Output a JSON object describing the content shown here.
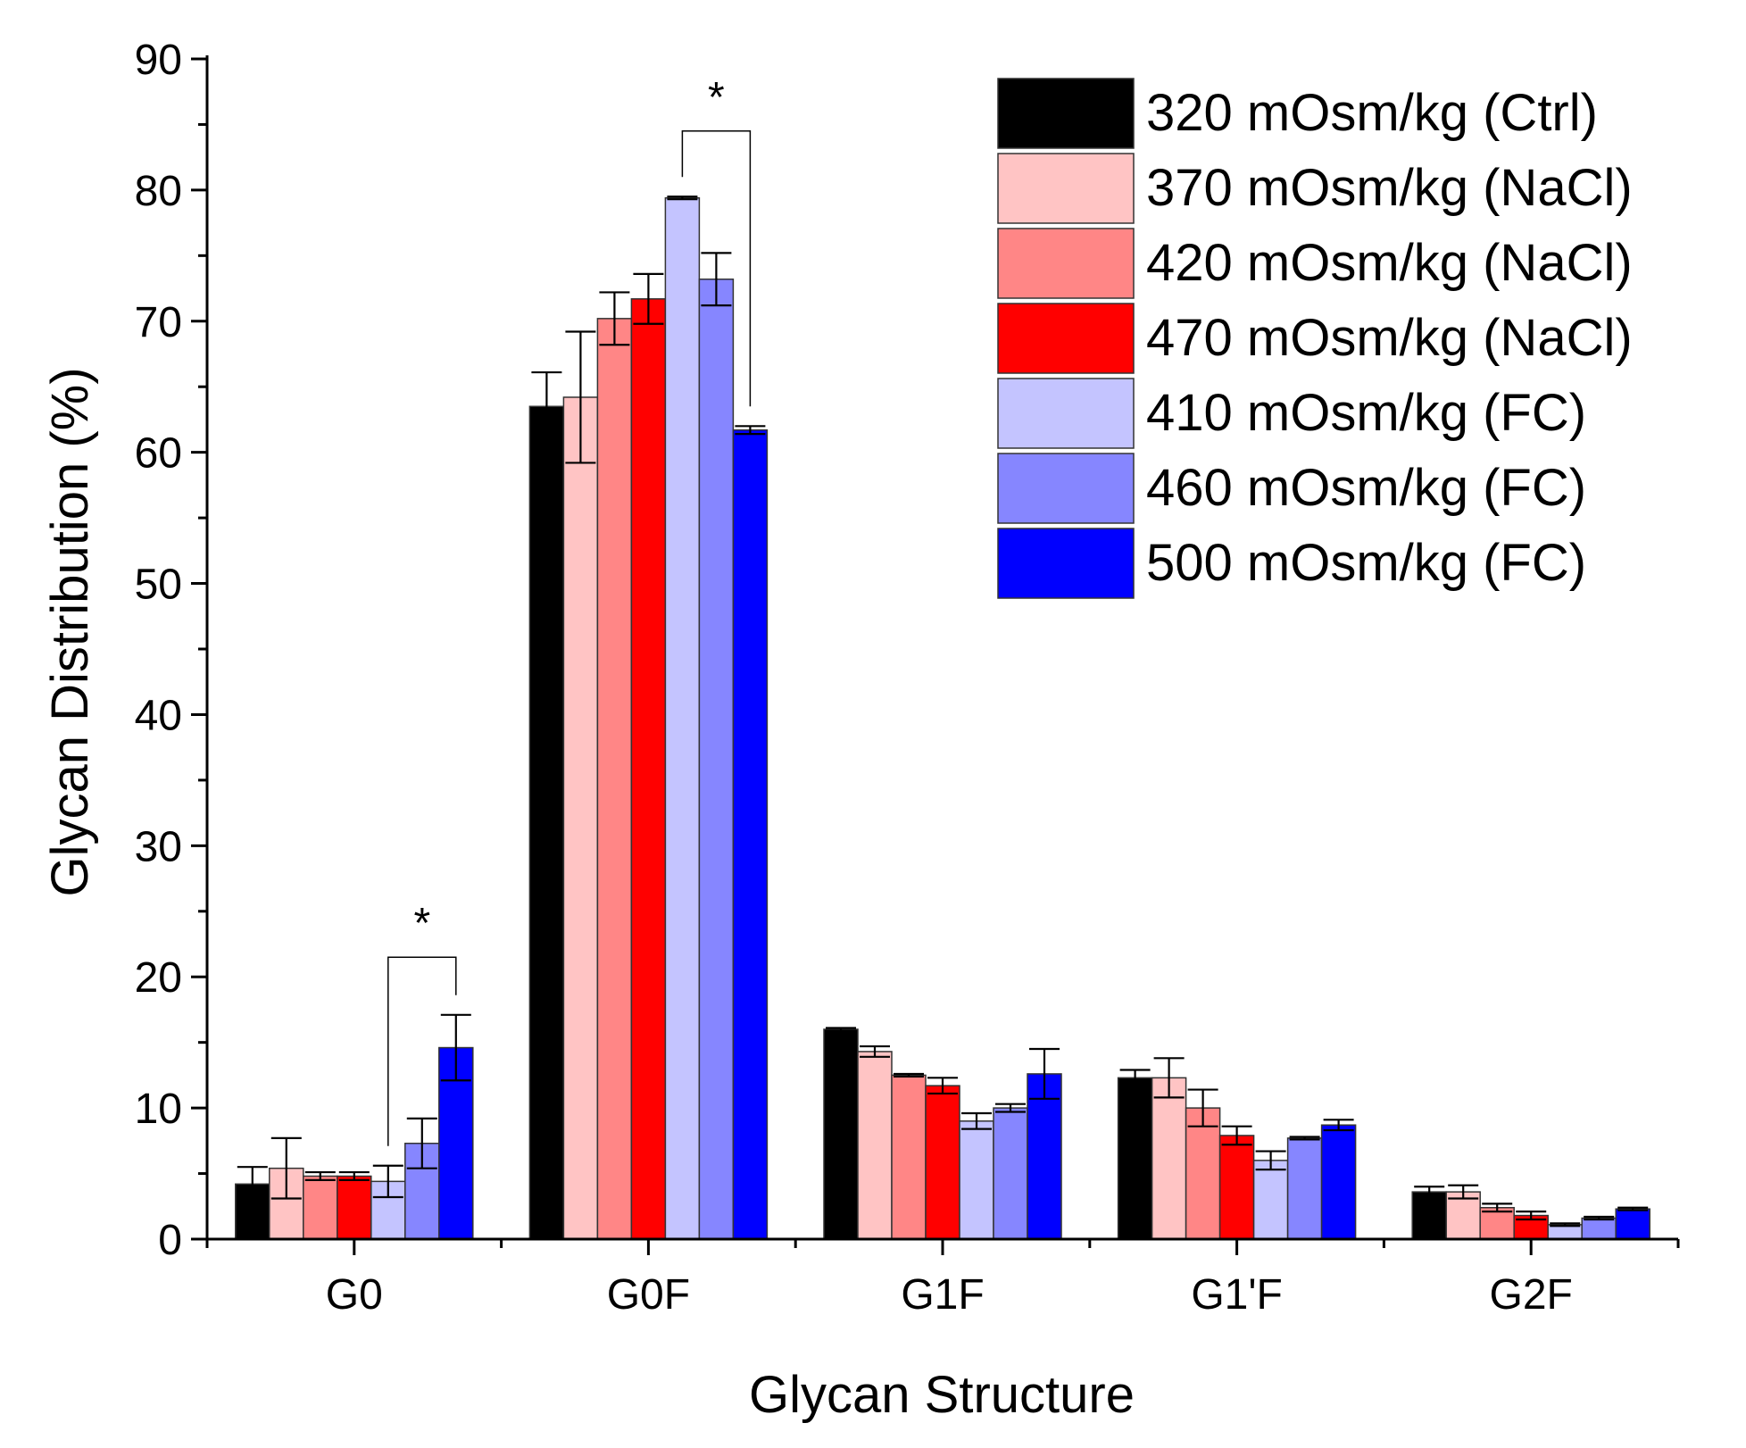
{
  "chart_data": {
    "type": "bar",
    "title": "",
    "xlabel": "Glycan Structure",
    "ylabel": "Glycan Distribution (%)",
    "ylim": [
      0,
      90
    ],
    "yticks": [
      0,
      10,
      20,
      30,
      40,
      50,
      60,
      70,
      80,
      90
    ],
    "categories": [
      "G0",
      "G0F",
      "G1F",
      "G1'F",
      "G2F"
    ],
    "legend_position": "top-right",
    "series": [
      {
        "name": "320 mOsm/kg (Ctrl)",
        "color": "#000000",
        "values": [
          4.2,
          63.5,
          16.0,
          12.3,
          3.6
        ],
        "errors": [
          1.3,
          2.6,
          0.1,
          0.6,
          0.4
        ]
      },
      {
        "name": "370 mOsm/kg (NaCl)",
        "color": "#FFC4C4",
        "values": [
          5.4,
          64.2,
          14.3,
          12.3,
          3.6
        ],
        "errors": [
          2.3,
          5.0,
          0.4,
          1.5,
          0.5
        ]
      },
      {
        "name": "420 mOsm/kg (NaCl)",
        "color": "#FF8686",
        "values": [
          4.8,
          70.2,
          12.5,
          10.0,
          2.4
        ],
        "errors": [
          0.3,
          2.0,
          0.1,
          1.4,
          0.3
        ]
      },
      {
        "name": "470 mOsm/kg (NaCl)",
        "color": "#FF0000",
        "values": [
          4.8,
          71.7,
          11.7,
          7.9,
          1.8
        ],
        "errors": [
          0.3,
          1.9,
          0.6,
          0.7,
          0.3
        ]
      },
      {
        "name": "410 mOsm/kg (FC)",
        "color": "#C4C4FF",
        "values": [
          4.4,
          79.4,
          9.0,
          6.0,
          1.1
        ],
        "errors": [
          1.2,
          0.1,
          0.6,
          0.7,
          0.1
        ]
      },
      {
        "name": "460 mOsm/kg (FC)",
        "color": "#8686FF",
        "values": [
          7.3,
          73.2,
          10.0,
          7.7,
          1.6
        ],
        "errors": [
          1.9,
          2.0,
          0.3,
          0.1,
          0.1
        ]
      },
      {
        "name": "500 mOsm/kg (FC)",
        "color": "#0000FF",
        "values": [
          14.6,
          61.7,
          12.6,
          8.7,
          2.3
        ],
        "errors": [
          2.5,
          0.3,
          1.9,
          0.4,
          0.1
        ]
      }
    ],
    "annotations": [
      {
        "text": "*",
        "category": "G0",
        "from_series": 4,
        "to_series": 6,
        "bracket_top": 21.5
      },
      {
        "text": "*",
        "category": "G0F",
        "from_series": 4,
        "to_series": 6,
        "bracket_top": 84.5
      }
    ]
  }
}
